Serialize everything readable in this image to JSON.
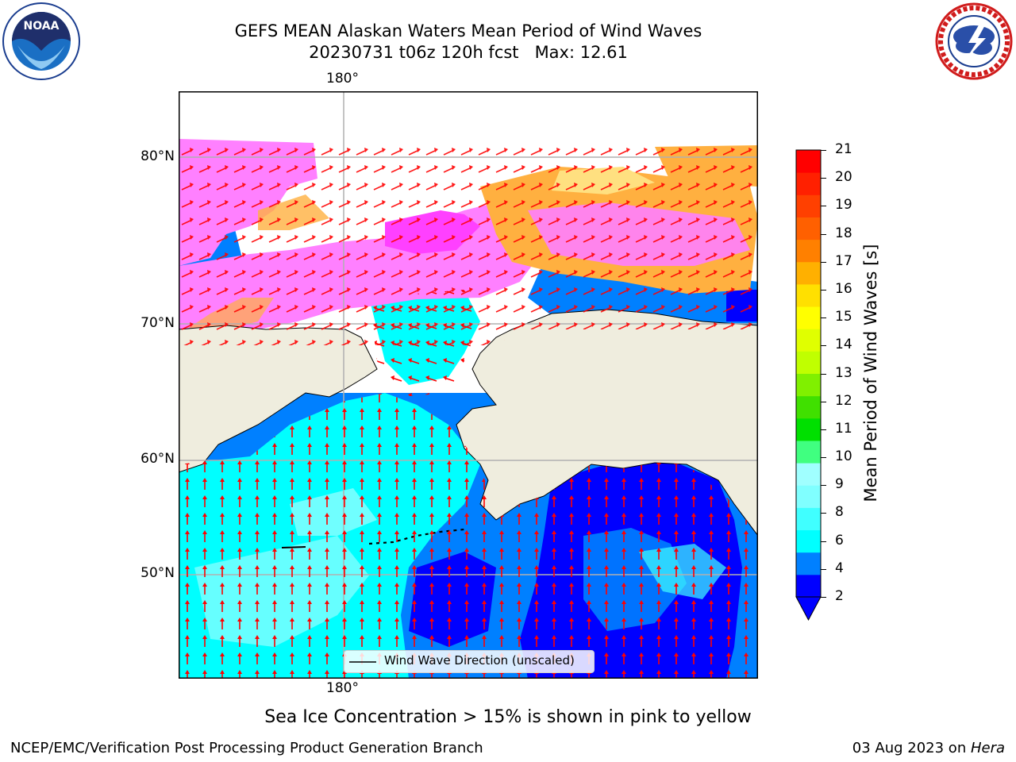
{
  "title_line1": "GEFS MEAN Alaskan Waters Mean Period of Wind Waves",
  "title_line2": "20230731 t06z 120h fcst   Max: 12.61",
  "subtitle": "Sea Ice Concentration > 15% is shown in pink to yellow",
  "footer_left": "NCEP/EMC/Verification Post Processing Product Generation Branch",
  "footer_date": "03 Aug 2023 on ",
  "footer_host": "Hera",
  "lon_labels": {
    "top": "180°",
    "bottom": "180°"
  },
  "lat_labels": [
    "80°N",
    "70°N",
    "60°N",
    "50°N"
  ],
  "legend_label": "Wind Wave Direction (unscaled)",
  "colorbar": {
    "label": "Mean Period of Wind Waves [s]",
    "ticks": [
      "21",
      "20",
      "19",
      "18",
      "17",
      "16",
      "15",
      "14",
      "13",
      "12",
      "11",
      "10",
      "9",
      "8",
      "6",
      "4",
      "2"
    ],
    "colors": [
      "#0000ff",
      "#0080ff",
      "#00ffff",
      "#40ffff",
      "#80ffff",
      "#a0ffff",
      "#40ff80",
      "#00e000",
      "#40e000",
      "#80f000",
      "#c0ff00",
      "#e0ff00",
      "#ffff00",
      "#ffe000",
      "#ffb000",
      "#ff8000",
      "#ff6000",
      "#ff4000",
      "#ff2000",
      "#ff0000"
    ]
  },
  "logos": {
    "left": "NOAA",
    "right": "NATIONAL WEATHER SERVICE"
  },
  "map_colors": {
    "land": "#efedde",
    "ice_pink": "#ff80ff",
    "ice_orange": "#ffb040",
    "arrow": "#ff0000"
  }
}
